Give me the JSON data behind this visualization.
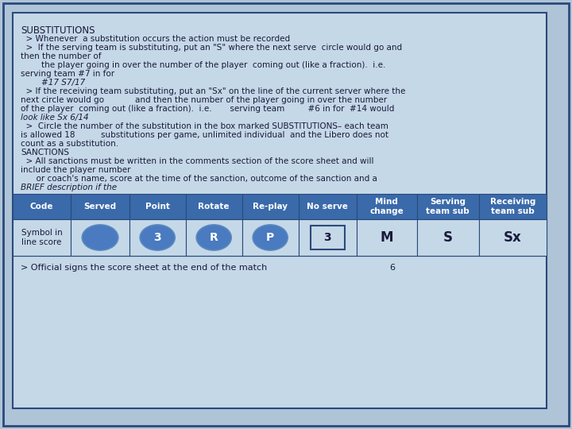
{
  "bg_outer": "#b0c4d8",
  "bg_inner": "#c5d8e8",
  "border_outer": "#2a4a7a",
  "border_inner": "#2a4a7a",
  "text_color": "#1a1a3a",
  "table_header_bg": "#3a6aaa",
  "table_header_text": "#ffffff",
  "table_row_bg": "#c5d8e8",
  "table_border": "#2a4a7a",
  "circle_color": "#4a7abf",
  "table_headers": [
    "Code",
    "Served",
    "Point",
    "Rotate",
    "Re-play",
    "No serve",
    "Mind\nchange",
    "Serving\nteam sub",
    "Receiving\nteam sub"
  ],
  "table_row_label": "Symbol in\nline score",
  "col_symbols": [
    "circle_empty",
    "circle_3",
    "circle_R",
    "circle_P",
    "square_3",
    "M",
    "S",
    "Sx"
  ],
  "footer_text": "> Official signs the score sheet at the end of the match",
  "footer_num": "6",
  "lines": [
    [
      "SUBSTITUTIONS",
      26,
      32,
      8.5,
      false,
      false
    ],
    [
      "  > Whenever  a substitution occurs the action must be recorded",
      26,
      44,
      7.5,
      false,
      false
    ],
    [
      "  >  If the serving team is substituting, put an \"S\" where the next serve  circle would go and",
      26,
      55,
      7.5,
      false,
      false
    ],
    [
      "then the number of",
      26,
      66,
      7.5,
      false,
      false
    ],
    [
      "        the player going in over the number of the player  coming out (like a fraction).  i.e.",
      26,
      77,
      7.5,
      false,
      false
    ],
    [
      "serving team #7 in for",
      26,
      88,
      7.5,
      false,
      false
    ],
    [
      "        #17 S7/17",
      26,
      99,
      7.5,
      true,
      false
    ],
    [
      "  > If the receiving team substituting, put an \"Sx\" on the line of the current server where the",
      26,
      110,
      7.5,
      false,
      false
    ],
    [
      "next circle would go            and then the number of the player going in over the number",
      26,
      121,
      7.5,
      false,
      false
    ],
    [
      "of the player  coming out (like a fraction).  i.e.       serving team         #6 in for  #14 would",
      26,
      132,
      7.5,
      false,
      false
    ],
    [
      "look like Sx 6/14",
      26,
      143,
      7.5,
      true,
      false
    ],
    [
      "  >  Circle the number of the substitution in the box marked SUBSTITUTIONS– each team",
      26,
      154,
      7.5,
      false,
      false
    ],
    [
      "is allowed 18          substitutions per game, unlimited individual  and the Libero does not",
      26,
      165,
      7.5,
      false,
      false
    ],
    [
      "count as a substitution.",
      26,
      176,
      7.5,
      false,
      false
    ],
    [
      "SANCTIONS",
      26,
      187,
      7.5,
      false,
      false
    ],
    [
      "  > All sanctions must be written in the comments section of the score sheet and will",
      26,
      198,
      7.5,
      false,
      false
    ],
    [
      "include the player number",
      26,
      209,
      7.5,
      false,
      false
    ],
    [
      "      or coach's name, score at the time of the sanction, outcome of the sanction and a",
      26,
      220,
      7.5,
      false,
      false
    ],
    [
      "BRIEF description if the",
      26,
      231,
      7.5,
      true,
      false
    ]
  ]
}
